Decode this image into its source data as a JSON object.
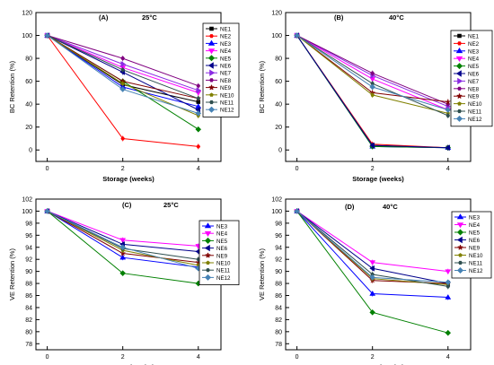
{
  "colors": {
    "NE1": "#000000",
    "NE2": "#ff0000",
    "NE3": "#0000ff",
    "NE4": "#ff00ff",
    "NE5": "#008000",
    "NE6": "#00008b",
    "NE7": "#8a2be2",
    "NE8": "#800080",
    "NE9": "#800000",
    "NE10": "#808000",
    "NE11": "#2f4f4f",
    "NE12": "#4682b4"
  },
  "markers": {
    "NE1": "square",
    "NE2": "circle",
    "NE3": "triangle-up",
    "NE4": "triangle-down",
    "NE5": "diamond",
    "NE6": "triangle-left",
    "NE7": "triangle-right",
    "NE8": "hexagon",
    "NE9": "star",
    "NE10": "pentagon",
    "NE11": "circle",
    "NE12": "diamond"
  },
  "chart_data": [
    {
      "type": "line",
      "panel_label": "(A)",
      "temperature": "25°C",
      "xlabel": "Storage (weeks)",
      "ylabel": "BC Retention (%)",
      "xlim": [
        -0.3,
        4.6
      ],
      "ylim": [
        -10,
        120
      ],
      "xticks": [
        0,
        2,
        4
      ],
      "yticks": [
        0,
        20,
        40,
        60,
        80,
        100,
        120
      ],
      "x": [
        0,
        2,
        4
      ],
      "series": [
        {
          "name": "NE1",
          "values": [
            100,
            57,
            42
          ]
        },
        {
          "name": "NE2",
          "values": [
            100,
            10,
            3
          ]
        },
        {
          "name": "NE3",
          "values": [
            100,
            55,
            38
          ]
        },
        {
          "name": "NE4",
          "values": [
            100,
            72,
            50
          ]
        },
        {
          "name": "NE5",
          "values": [
            100,
            60,
            18
          ]
        },
        {
          "name": "NE6",
          "values": [
            100,
            68,
            35
          ]
        },
        {
          "name": "NE7",
          "values": [
            100,
            75,
            52
          ]
        },
        {
          "name": "NE8",
          "values": [
            100,
            80,
            56
          ]
        },
        {
          "name": "NE9",
          "values": [
            100,
            60,
            45
          ]
        },
        {
          "name": "NE10",
          "values": [
            100,
            58,
            30
          ]
        },
        {
          "name": "NE11",
          "values": [
            100,
            70,
            45
          ]
        },
        {
          "name": "NE12",
          "values": [
            100,
            53,
            32
          ]
        }
      ]
    },
    {
      "type": "line",
      "panel_label": "(B)",
      "temperature": "40°C",
      "xlabel": "Storage (weeks)",
      "ylabel": "BC Retention (%)",
      "xlim": [
        -0.3,
        4.6
      ],
      "ylim": [
        -10,
        120
      ],
      "xticks": [
        0,
        2,
        4
      ],
      "yticks": [
        0,
        20,
        40,
        60,
        80,
        100,
        120
      ],
      "x": [
        0,
        2,
        4
      ],
      "series": [
        {
          "name": "NE1",
          "values": [
            100,
            4,
            2
          ]
        },
        {
          "name": "NE2",
          "values": [
            100,
            5,
            2
          ]
        },
        {
          "name": "NE3",
          "values": [
            100,
            3,
            2
          ]
        },
        {
          "name": "NE4",
          "values": [
            100,
            62,
            35
          ]
        },
        {
          "name": "NE5",
          "values": [
            100,
            3,
            2
          ]
        },
        {
          "name": "NE6",
          "values": [
            100,
            4,
            2
          ]
        },
        {
          "name": "NE7",
          "values": [
            100,
            65,
            38
          ]
        },
        {
          "name": "NE8",
          "values": [
            100,
            67,
            40
          ]
        },
        {
          "name": "NE9",
          "values": [
            100,
            50,
            42
          ]
        },
        {
          "name": "NE10",
          "values": [
            100,
            48,
            32
          ]
        },
        {
          "name": "NE11",
          "values": [
            100,
            58,
            30
          ]
        },
        {
          "name": "NE12",
          "values": [
            100,
            55,
            35
          ]
        }
      ]
    },
    {
      "type": "line",
      "panel_label": "(C)",
      "temperature": "25°C",
      "xlabel": "Storage (weeks)",
      "ylabel": "VE Retention (%)",
      "xlim": [
        -0.3,
        4.6
      ],
      "ylim": [
        77,
        102
      ],
      "xticks": [
        0,
        2,
        4
      ],
      "yticks": [
        78,
        80,
        82,
        84,
        86,
        88,
        90,
        92,
        94,
        96,
        98,
        100,
        102
      ],
      "x": [
        0,
        2,
        4
      ],
      "series": [
        {
          "name": "NE3",
          "values": [
            100,
            92.3,
            90.7
          ]
        },
        {
          "name": "NE4",
          "values": [
            100,
            95.2,
            94.2
          ]
        },
        {
          "name": "NE5",
          "values": [
            100,
            89.7,
            88.0
          ]
        },
        {
          "name": "NE6",
          "values": [
            100,
            94.5,
            93.3
          ]
        },
        {
          "name": "NE9",
          "values": [
            100,
            93.0,
            91.5
          ]
        },
        {
          "name": "NE10",
          "values": [
            100,
            93.5,
            91.0
          ]
        },
        {
          "name": "NE11",
          "values": [
            100,
            93.8,
            92.0
          ]
        },
        {
          "name": "NE12",
          "values": [
            100,
            94.0,
            90.5
          ]
        }
      ]
    },
    {
      "type": "line",
      "panel_label": "(D)",
      "temperature": "40°C",
      "xlabel": "Storage (weeks)",
      "ylabel": "VE Retention (%)",
      "xlim": [
        -0.3,
        4.6
      ],
      "ylim": [
        77,
        102
      ],
      "xticks": [
        0,
        2,
        4
      ],
      "yticks": [
        78,
        80,
        82,
        84,
        86,
        88,
        90,
        92,
        94,
        96,
        98,
        100,
        102
      ],
      "x": [
        0,
        2,
        4
      ],
      "series": [
        {
          "name": "NE3",
          "values": [
            100,
            86.3,
            85.7
          ]
        },
        {
          "name": "NE4",
          "values": [
            100,
            91.5,
            90.0
          ]
        },
        {
          "name": "NE5",
          "values": [
            100,
            83.2,
            79.8
          ]
        },
        {
          "name": "NE6",
          "values": [
            100,
            90.5,
            88.0
          ]
        },
        {
          "name": "NE9",
          "values": [
            100,
            88.5,
            88.0
          ]
        },
        {
          "name": "NE10",
          "values": [
            100,
            88.8,
            87.8
          ]
        },
        {
          "name": "NE11",
          "values": [
            100,
            89.5,
            87.5
          ]
        },
        {
          "name": "NE12",
          "values": [
            100,
            89.0,
            88.2
          ]
        }
      ]
    }
  ]
}
